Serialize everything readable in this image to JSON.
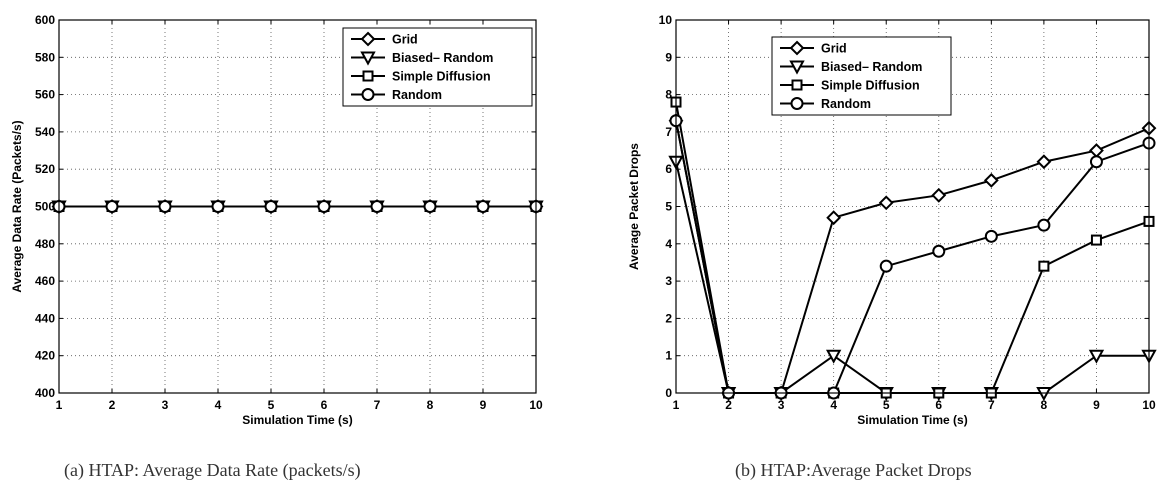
{
  "charts": [
    {
      "caption": "(a)  HTAP: Average Data Rate (packets/s)",
      "chart_data": {
        "type": "line",
        "xlabel": "Simulation Time (s)",
        "ylabel": "Average Data Rate (Packets/s)",
        "xlim": [
          1,
          10
        ],
        "ylim": [
          400,
          600
        ],
        "xticks": [
          1,
          2,
          3,
          4,
          5,
          6,
          7,
          8,
          9,
          10
        ],
        "yticks": [
          400,
          420,
          440,
          460,
          480,
          500,
          520,
          540,
          560,
          580,
          600
        ],
        "grid": true,
        "legend_position": "top-right",
        "x": [
          1,
          2,
          3,
          4,
          5,
          6,
          7,
          8,
          9,
          10
        ],
        "series": [
          {
            "name": "Grid",
            "marker": "diamond",
            "values": [
              500,
              500,
              500,
              500,
              500,
              500,
              500,
              500,
              500,
              500
            ]
          },
          {
            "name": "Biased– Random",
            "marker": "triangle-down",
            "values": [
              500,
              500,
              500,
              500,
              500,
              500,
              500,
              500,
              500,
              500
            ]
          },
          {
            "name": "Simple Diffusion",
            "marker": "square",
            "values": [
              500,
              500,
              500,
              500,
              500,
              500,
              500,
              500,
              500,
              500
            ]
          },
          {
            "name": "Random",
            "marker": "circle",
            "values": [
              500,
              500,
              500,
              500,
              500,
              500,
              500,
              500,
              500,
              500
            ]
          }
        ]
      }
    },
    {
      "caption": "(b)  HTAP:Average Packet Drops",
      "chart_data": {
        "type": "line",
        "xlabel": "Simulation Time (s)",
        "ylabel": "Average Packet Drops",
        "xlim": [
          1,
          10
        ],
        "ylim": [
          0,
          10
        ],
        "xticks": [
          1,
          2,
          3,
          4,
          5,
          6,
          7,
          8,
          9,
          10
        ],
        "yticks": [
          0,
          1,
          2,
          3,
          4,
          5,
          6,
          7,
          8,
          9,
          10
        ],
        "grid": true,
        "legend_position": "top-left",
        "x": [
          1,
          2,
          3,
          4,
          5,
          6,
          7,
          8,
          9,
          10
        ],
        "series": [
          {
            "name": "Grid",
            "marker": "diamond",
            "values": [
              7.3,
              0,
              0,
              4.7,
              5.1,
              5.3,
              5.7,
              6.2,
              6.5,
              7.1
            ]
          },
          {
            "name": "Biased– Random",
            "marker": "triangle-down",
            "values": [
              6.2,
              0,
              0,
              1.0,
              0,
              0,
              0,
              0,
              1.0,
              1.0
            ]
          },
          {
            "name": "Simple Diffusion",
            "marker": "square",
            "values": [
              7.8,
              0,
              0,
              0,
              0,
              0,
              0,
              3.4,
              4.1,
              4.6
            ]
          },
          {
            "name": "Random",
            "marker": "circle",
            "values": [
              7.3,
              0,
              0,
              0,
              3.4,
              3.8,
              4.2,
              4.5,
              6.2,
              6.7
            ]
          }
        ]
      }
    }
  ]
}
